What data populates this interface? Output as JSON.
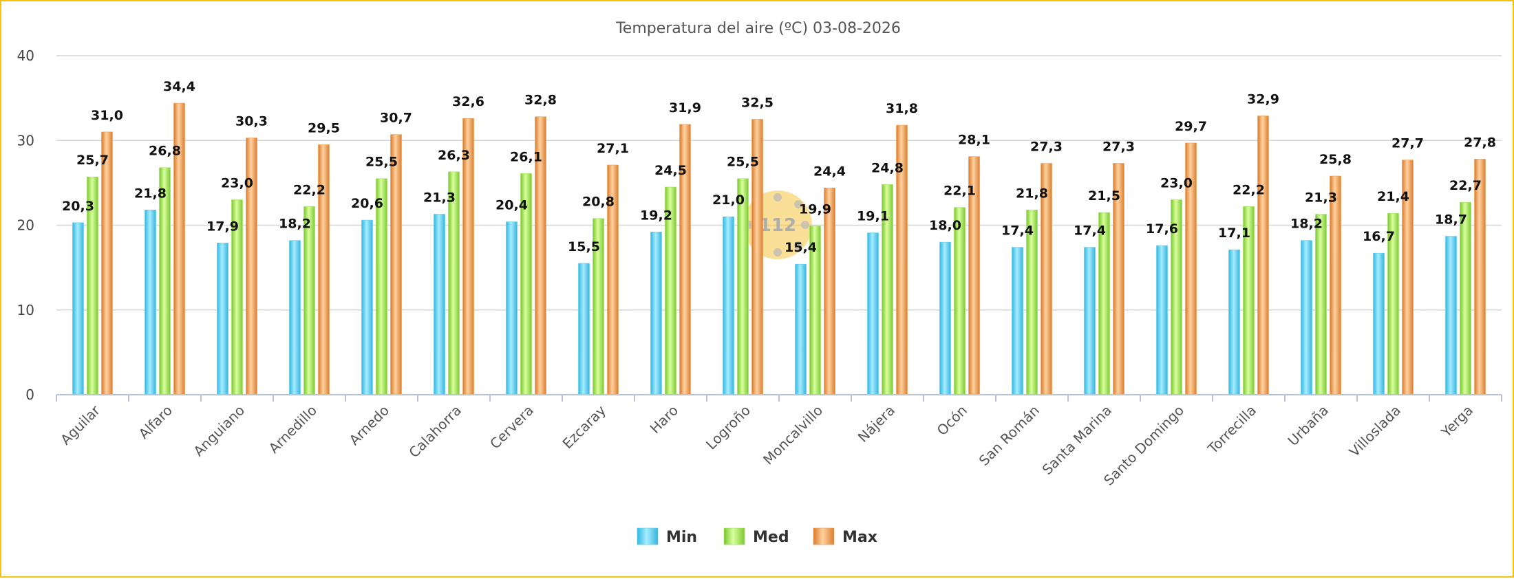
{
  "chart_data": {
    "type": "bar",
    "title": "Temperatura del aire (ºC) 03-08-2026",
    "xlabel": "",
    "ylabel": "",
    "ylim": [
      0,
      40
    ],
    "yticks": [
      0,
      10,
      20,
      30,
      40
    ],
    "grid": true,
    "legend_position": "bottom",
    "categories": [
      "Aguilar",
      "Alfaro",
      "Anguiano",
      "Arnedillo",
      "Arnedo",
      "Calahorra",
      "Cervera",
      "Ezcaray",
      "Haro",
      "Logroño",
      "Moncalvillo",
      "Nájera",
      "Ocón",
      "San Román",
      "Santa Marina",
      "Santo Domingo",
      "Torrecilla",
      "Urbaña",
      "Villoslada",
      "Yerga"
    ],
    "series": [
      {
        "name": "Min",
        "color": "#5ad0ee",
        "values": [
          20.3,
          21.8,
          17.9,
          18.2,
          20.6,
          21.3,
          20.4,
          15.5,
          19.2,
          21.0,
          15.4,
          19.1,
          18.0,
          17.4,
          17.4,
          17.6,
          17.1,
          18.2,
          16.7,
          18.7
        ],
        "labels": [
          "20,3",
          "21,8",
          "17,9",
          "18,2",
          "20,6",
          "21,3",
          "20,4",
          "15,5",
          "19,2",
          "21,0",
          "15,4",
          "19,1",
          "18,0",
          "17,4",
          "17,4",
          "17,6",
          "17,1",
          "18,2",
          "16,7",
          "18,7"
        ]
      },
      {
        "name": "Med",
        "color": "#a4e35a",
        "values": [
          25.7,
          26.8,
          23.0,
          22.2,
          25.5,
          26.3,
          26.1,
          20.8,
          24.5,
          25.5,
          19.9,
          24.8,
          22.1,
          21.8,
          21.5,
          23.0,
          22.2,
          21.3,
          21.4,
          22.7
        ],
        "labels": [
          "25,7",
          "26,8",
          "23,0",
          "22,2",
          "25,5",
          "26,3",
          "26,1",
          "20,8",
          "24,5",
          "25,5",
          "19,9",
          "24,8",
          "22,1",
          "21,8",
          "21,5",
          "23,0",
          "22,2",
          "21,3",
          "21,4",
          "22,7"
        ]
      },
      {
        "name": "Max",
        "color": "#ef9f52",
        "values": [
          31.0,
          34.4,
          30.3,
          29.5,
          30.7,
          32.6,
          32.8,
          27.1,
          31.9,
          32.5,
          24.4,
          31.8,
          28.1,
          27.3,
          27.3,
          29.7,
          32.9,
          25.8,
          27.7,
          27.8
        ],
        "labels": [
          "31,0",
          "34,4",
          "30,3",
          "29,5",
          "30,7",
          "32,6",
          "32,8",
          "27,1",
          "31,9",
          "32,5",
          "24,4",
          "31,8",
          "28,1",
          "27,3",
          "27,3",
          "29,7",
          "32,9",
          "25,8",
          "27,7",
          "27,8"
        ]
      }
    ],
    "watermark_text": "112"
  }
}
